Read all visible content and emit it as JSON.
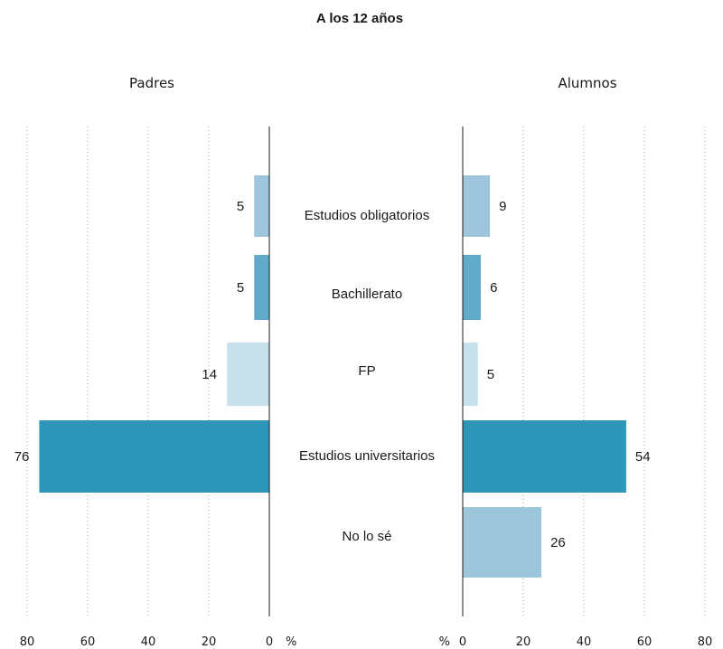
{
  "chart_data": {
    "type": "bar",
    "orientation": "horizontal",
    "layout": "butterfly",
    "title": "A los 12 años",
    "categories": [
      "Estudios obligatorios",
      "Bachillerato",
      "FP",
      "Estudios universitarios",
      "No lo sé"
    ],
    "category_colors": [
      "#9dc6dc",
      "#62aaca",
      "#c6e0ec",
      "#2d96b9",
      "#9dc6dc"
    ],
    "unit": "%",
    "xlim": [
      0,
      80
    ],
    "xticks": [
      0,
      20,
      40,
      60,
      80
    ],
    "grid": true,
    "series": [
      {
        "name": "Padres",
        "side": "left",
        "values": [
          5,
          5,
          14,
          76,
          null
        ]
      },
      {
        "name": "Alumnos",
        "side": "right",
        "values": [
          9,
          6,
          5,
          54,
          26
        ]
      }
    ]
  }
}
